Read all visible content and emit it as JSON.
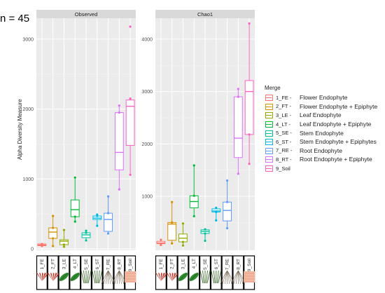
{
  "sample_count_label": "n = 45",
  "y_axis_label": "Alpha Diversity Measure",
  "legend": {
    "title": "Merge",
    "items": [
      {
        "code": "1_FE",
        "description": "Flower Endophyte",
        "color": "#f8766d"
      },
      {
        "code": "2_FT",
        "description": "Flower Endophyte + Epiphyte",
        "color": "#d39200"
      },
      {
        "code": "3_LE",
        "description": "Leaf Endophyte",
        "color": "#93aa00"
      },
      {
        "code": "4_LT",
        "description": "Leaf Endophyte + Epiphyte",
        "color": "#00ba38"
      },
      {
        "code": "5_SE",
        "description": "Stem Endophyte",
        "color": "#00c19f"
      },
      {
        "code": "6_ST",
        "description": "Stem Endophyte + Epiphytes",
        "color": "#00b9e3"
      },
      {
        "code": "7_RE",
        "description": "Root Endophyte",
        "color": "#619cff"
      },
      {
        "code": "8_RT",
        "description": "Root Endophyte + Epiphyte",
        "color": "#db72fb"
      },
      {
        "code": "9_Soil",
        "description": "",
        "color": "#ff61c3"
      }
    ]
  },
  "icons": [
    "flower-icon",
    "flower-icon",
    "leaf-icon",
    "leaf-icon",
    "stem-icon",
    "stem-icon",
    "root-icon",
    "root-icon",
    "soil-icon"
  ],
  "chart_data": [
    {
      "type": "box",
      "title": "Observed",
      "categories": [
        "1_FE",
        "2_FT",
        "3_LE",
        "4_LT",
        "5_SE",
        "6_ST",
        "7_RE",
        "8_RT",
        "9_Soil"
      ],
      "ylim": [
        -20,
        3300
      ],
      "yticks": [
        0,
        1000,
        2000,
        3000
      ],
      "grid": true,
      "boxes": [
        {
          "min": 40,
          "q1": 45,
          "median": 55,
          "q3": 70,
          "max": 80,
          "points": [
            45,
            70,
            40
          ]
        },
        {
          "min": 40,
          "q1": 150,
          "median": 240,
          "q3": 300,
          "max": 470,
          "points": [
            40,
            300,
            470,
            150
          ]
        },
        {
          "min": 30,
          "q1": 60,
          "median": 110,
          "q3": 130,
          "max": 270,
          "points": [
            60,
            270,
            30
          ]
        },
        {
          "min": 390,
          "q1": 460,
          "median": 560,
          "q3": 700,
          "max": 1020,
          "points": [
            1020,
            390,
            460
          ]
        },
        {
          "min": 120,
          "q1": 160,
          "median": 200,
          "q3": 230,
          "max": 260,
          "points": [
            120,
            230,
            260
          ]
        },
        {
          "min": 330,
          "q1": 420,
          "median": 440,
          "q3": 470,
          "max": 490,
          "points": [
            330,
            470,
            490
          ]
        },
        {
          "min": 220,
          "q1": 250,
          "median": 420,
          "q3": 510,
          "max": 750,
          "points": [
            750,
            220,
            510
          ]
        },
        {
          "min": 850,
          "q1": 1130,
          "median": 1380,
          "q3": 1950,
          "max": 2050,
          "points": [
            850,
            2050,
            1950
          ]
        },
        {
          "min": 1060,
          "q1": 1480,
          "median": 2040,
          "q3": 2130,
          "max": 2150,
          "points": [
            3180,
            1060,
            2150
          ]
        }
      ]
    },
    {
      "type": "box",
      "title": "Chao1",
      "categories": [
        "1_FE",
        "2_FT",
        "3_LE",
        "4_LT",
        "5_SE",
        "6_ST",
        "7_RE",
        "8_RT",
        "9_Soil"
      ],
      "ylim": [
        -30,
        4400
      ],
      "yticks": [
        1000,
        2000,
        3000,
        4000
      ],
      "grid": true,
      "boxes": [
        {
          "min": 70,
          "q1": 95,
          "median": 110,
          "q3": 140,
          "max": 170,
          "points": [
            70,
            170,
            95
          ]
        },
        {
          "min": 100,
          "q1": 160,
          "median": 470,
          "q3": 500,
          "max": 890,
          "points": [
            890,
            100,
            500
          ]
        },
        {
          "min": 60,
          "q1": 130,
          "median": 200,
          "q3": 280,
          "max": 480,
          "points": [
            480,
            60,
            130
          ]
        },
        {
          "min": 620,
          "q1": 780,
          "median": 900,
          "q3": 1010,
          "max": 1590,
          "points": [
            1590,
            620,
            1010
          ]
        },
        {
          "min": 150,
          "q1": 290,
          "median": 330,
          "q3": 360,
          "max": 370,
          "points": [
            150,
            370,
            290
          ]
        },
        {
          "min": 540,
          "q1": 700,
          "median": 720,
          "q3": 760,
          "max": 780,
          "points": [
            540,
            780,
            700
          ]
        },
        {
          "min": 390,
          "q1": 530,
          "median": 730,
          "q3": 890,
          "max": 1300,
          "points": [
            1300,
            390,
            890
          ]
        },
        {
          "min": 1430,
          "q1": 1740,
          "median": 2110,
          "q3": 2900,
          "max": 3050,
          "points": [
            1430,
            3050,
            2900
          ]
        },
        {
          "min": 1620,
          "q1": 2180,
          "median": 3000,
          "q3": 3210,
          "max": 4300,
          "points": [
            4300,
            1620,
            2180
          ]
        }
      ]
    }
  ]
}
